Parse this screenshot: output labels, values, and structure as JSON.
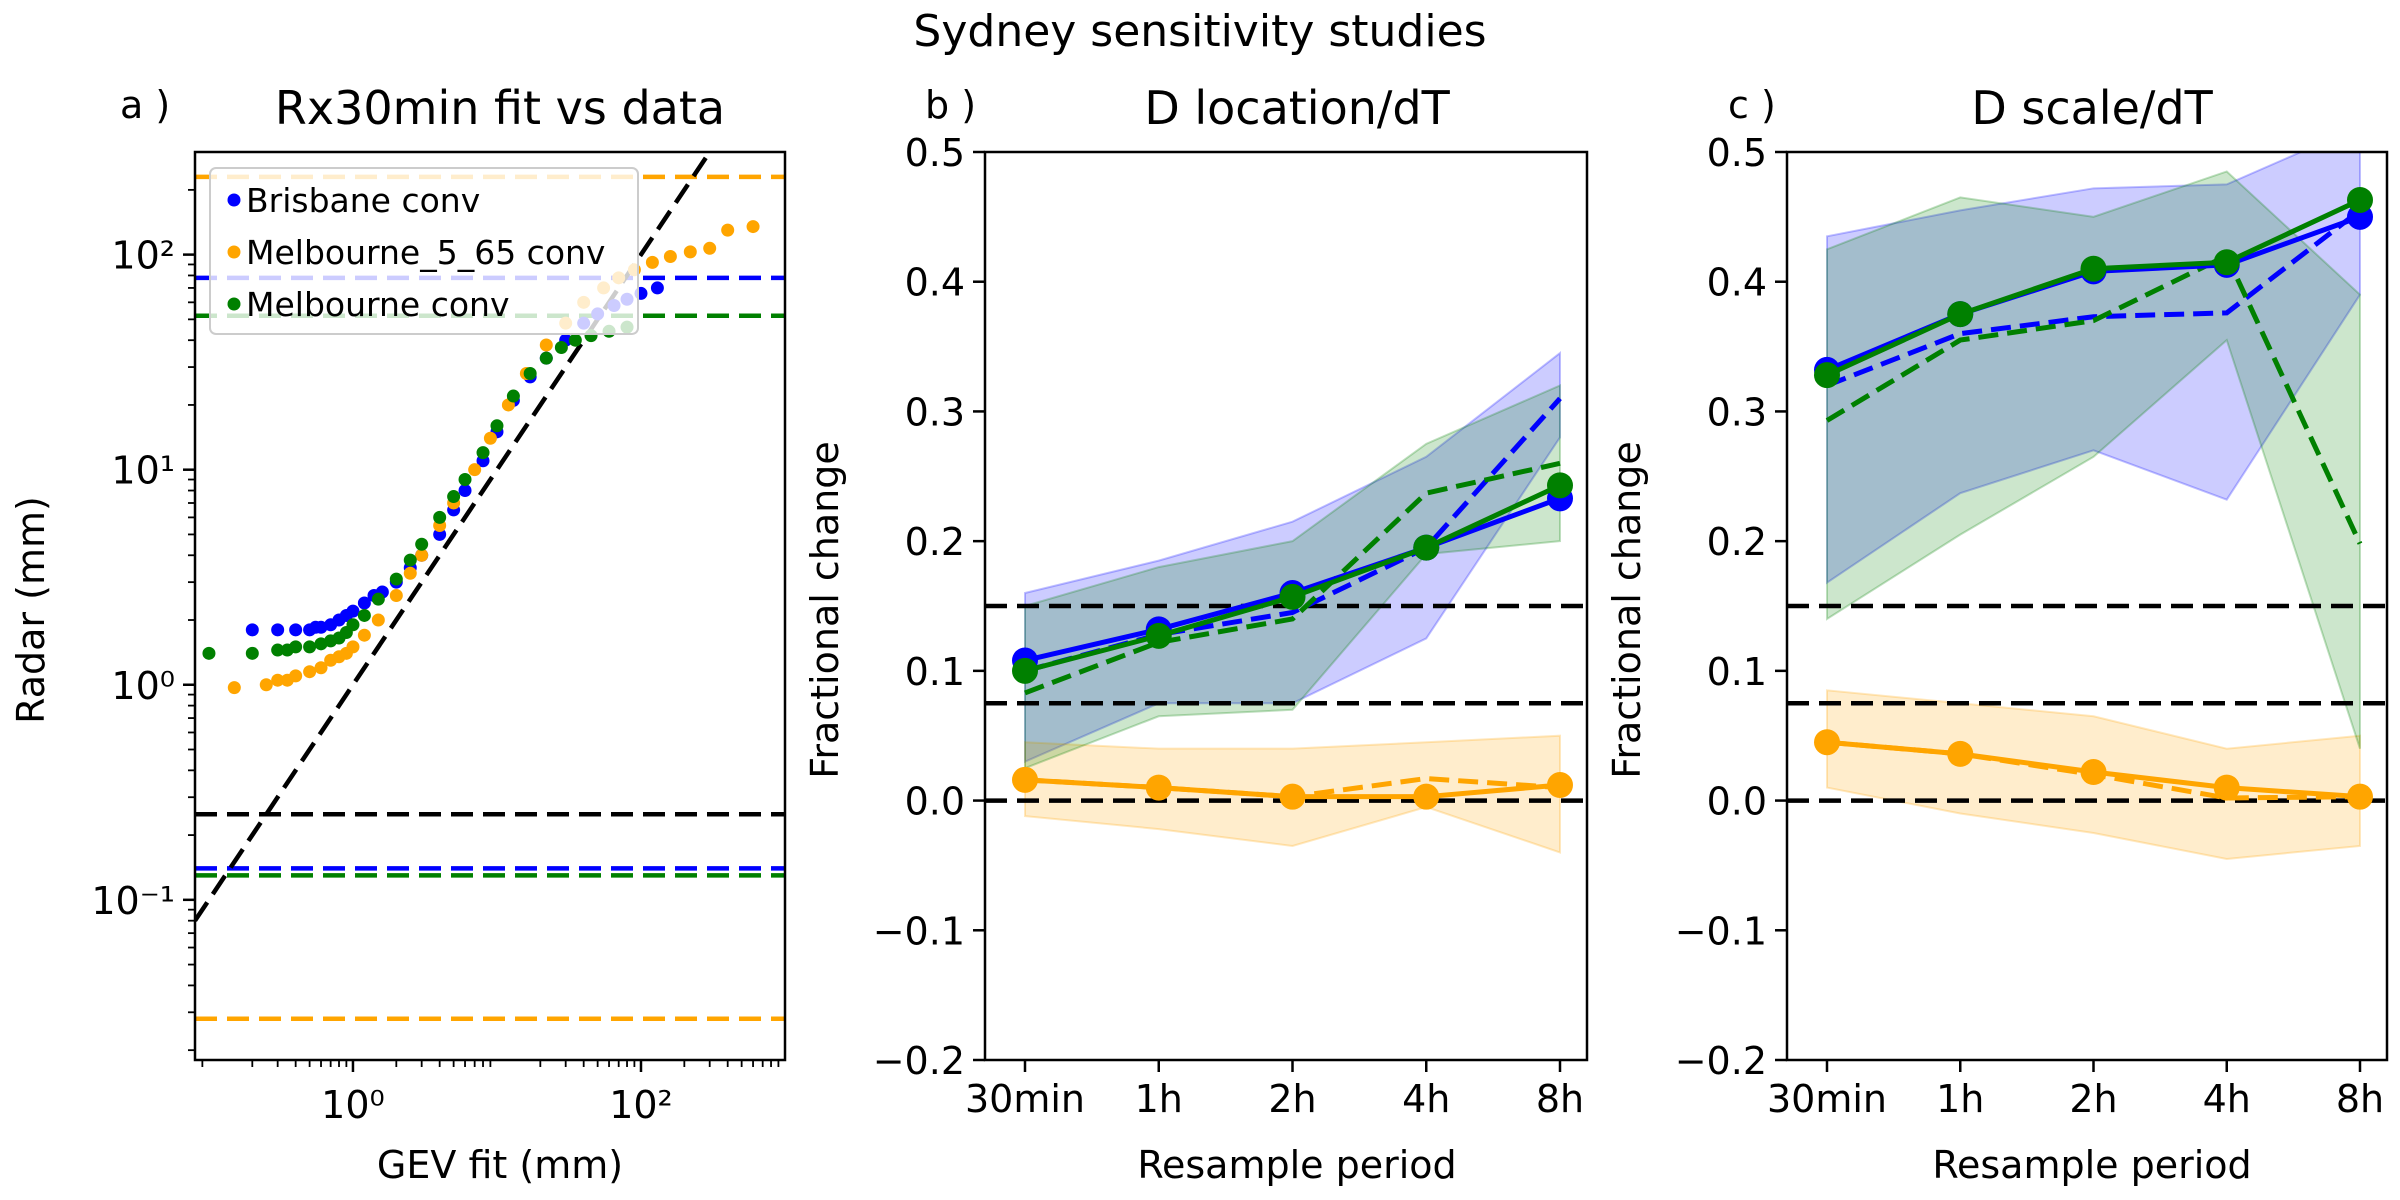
{
  "suptitle": "Sydney sensitivity studies",
  "colors": {
    "blue": "#0000ff",
    "orange": "#ffa500",
    "green": "#008000",
    "black": "#000000"
  },
  "panels": {
    "a": {
      "label": "a )",
      "title": "Rx30min fit vs data",
      "xlabel": "GEV fit (mm)",
      "ylabel": "Radar (mm)"
    },
    "b": {
      "label": "b )",
      "title": "D location/dT",
      "xlabel": "Resample period",
      "ylabel": "Fractional change"
    },
    "c": {
      "label": "c )",
      "title": "D scale/dT",
      "xlabel": "Resample period",
      "ylabel": "Fractional change"
    }
  },
  "chart_data": [
    {
      "type": "scatter",
      "panel": "a",
      "title": "Rx30min fit vs data",
      "xlabel": "GEV fit (mm)",
      "ylabel": "Radar (mm)",
      "xscale": "log",
      "yscale": "log",
      "xlim": [
        0.08,
        1000
      ],
      "ylim": [
        0.018,
        300
      ],
      "x_ticks": [
        {
          "value": 1,
          "label": "10⁰"
        },
        {
          "value": 100,
          "label": "10²"
        }
      ],
      "y_ticks": [
        {
          "value": 0.1,
          "label": "10⁻¹"
        },
        {
          "value": 1,
          "label": "10⁰"
        },
        {
          "value": 10,
          "label": "10¹"
        },
        {
          "value": 100,
          "label": "10²"
        }
      ],
      "legend": {
        "placement": "upper-left",
        "entries": [
          "Brisbane conv",
          "Melbourne_5_65 conv",
          "Melbourne conv"
        ]
      },
      "series": [
        {
          "name": "Brisbane conv",
          "color": "#0000ff",
          "points": [
            [
              0.2,
              1.8
            ],
            [
              0.3,
              1.8
            ],
            [
              0.4,
              1.8
            ],
            [
              0.5,
              1.8
            ],
            [
              0.55,
              1.85
            ],
            [
              0.6,
              1.85
            ],
            [
              0.7,
              1.9
            ],
            [
              0.8,
              2.0
            ],
            [
              0.9,
              2.1
            ],
            [
              1.0,
              2.2
            ],
            [
              1.2,
              2.4
            ],
            [
              1.4,
              2.6
            ],
            [
              1.6,
              2.7
            ],
            [
              2,
              3
            ],
            [
              2.5,
              3.5
            ],
            [
              3,
              4
            ],
            [
              4,
              5
            ],
            [
              5,
              6.5
            ],
            [
              6,
              8
            ],
            [
              8,
              11
            ],
            [
              10,
              15
            ],
            [
              13,
              21
            ],
            [
              17,
              27
            ],
            [
              22,
              33
            ],
            [
              30,
              40
            ],
            [
              40,
              48
            ],
            [
              50,
              53
            ],
            [
              65,
              58
            ],
            [
              80,
              62
            ],
            [
              100,
              66
            ],
            [
              130,
              70
            ]
          ],
          "upper_line": 78,
          "lower_line": 0.14
        },
        {
          "name": "Melbourne_5_65 conv",
          "color": "#ffa500",
          "points": [
            [
              0.15,
              0.97
            ],
            [
              0.25,
              1.0
            ],
            [
              0.3,
              1.05
            ],
            [
              0.35,
              1.05
            ],
            [
              0.4,
              1.1
            ],
            [
              0.5,
              1.15
            ],
            [
              0.6,
              1.2
            ],
            [
              0.7,
              1.3
            ],
            [
              0.8,
              1.35
            ],
            [
              0.9,
              1.4
            ],
            [
              1.0,
              1.5
            ],
            [
              1.2,
              1.7
            ],
            [
              1.5,
              2.0
            ],
            [
              2,
              2.6
            ],
            [
              2.5,
              3.3
            ],
            [
              3,
              4
            ],
            [
              4,
              5.5
            ],
            [
              5,
              7
            ],
            [
              7,
              10
            ],
            [
              9,
              14
            ],
            [
              12,
              20
            ],
            [
              16,
              28
            ],
            [
              22,
              38
            ],
            [
              30,
              48
            ],
            [
              40,
              60
            ],
            [
              55,
              70
            ],
            [
              70,
              78
            ],
            [
              90,
              85
            ],
            [
              120,
              92
            ],
            [
              160,
              98
            ],
            [
              220,
              103
            ],
            [
              300,
              107
            ],
            [
              400,
              130
            ],
            [
              600,
              135
            ]
          ],
          "upper_line": 230,
          "lower_line": 0.028
        },
        {
          "name": "Melbourne conv",
          "color": "#008000",
          "points": [
            [
              0.1,
              1.4
            ],
            [
              0.2,
              1.4
            ],
            [
              0.3,
              1.45
            ],
            [
              0.35,
              1.45
            ],
            [
              0.4,
              1.5
            ],
            [
              0.5,
              1.5
            ],
            [
              0.6,
              1.55
            ],
            [
              0.7,
              1.6
            ],
            [
              0.8,
              1.65
            ],
            [
              0.9,
              1.75
            ],
            [
              1.0,
              1.9
            ],
            [
              1.2,
              2.1
            ],
            [
              1.5,
              2.5
            ],
            [
              2,
              3.1
            ],
            [
              2.5,
              3.8
            ],
            [
              3,
              4.5
            ],
            [
              4,
              6
            ],
            [
              5,
              7.5
            ],
            [
              6,
              9
            ],
            [
              8,
              12
            ],
            [
              10,
              16
            ],
            [
              13,
              22
            ],
            [
              17,
              28
            ],
            [
              22,
              33
            ],
            [
              28,
              37
            ],
            [
              35,
              40
            ],
            [
              45,
              42
            ],
            [
              60,
              44
            ],
            [
              80,
              46
            ]
          ],
          "upper_line": 52,
          "lower_line": 0.13
        }
      ],
      "reference_lines": {
        "black_dashed_h": 0.25,
        "diagonal": "1:1"
      }
    },
    {
      "type": "line",
      "panel": "b",
      "title": "D location/dT",
      "xlabel": "Resample period",
      "ylabel": "Fractional change",
      "categories": [
        "30min",
        "1h",
        "2h",
        "4h",
        "8h"
      ],
      "ylim": [
        -0.2,
        0.5
      ],
      "y_ticks": [
        -0.2,
        -0.1,
        0.0,
        0.1,
        0.2,
        0.3,
        0.4,
        0.5
      ],
      "h_lines": [
        0.15,
        0.075,
        0.0
      ],
      "series": [
        {
          "name": "Brisbane conv",
          "color": "#0000ff",
          "values": [
            0.108,
            0.132,
            0.16,
            0.195,
            0.233
          ],
          "dashed": [
            0.1,
            0.128,
            0.145,
            0.195,
            0.31
          ],
          "band_low": [
            0.03,
            0.075,
            0.075,
            0.125,
            0.28
          ],
          "band_high": [
            0.16,
            0.185,
            0.215,
            0.265,
            0.345
          ]
        },
        {
          "name": "Melbourne_5_65 conv",
          "color": "#ffa500",
          "values": [
            0.016,
            0.01,
            0.003,
            0.003,
            0.012
          ],
          "dashed": [
            0.016,
            0.01,
            0.003,
            0.017,
            0.01
          ],
          "band_low": [
            -0.012,
            -0.022,
            -0.035,
            -0.005,
            -0.04
          ],
          "band_high": [
            0.045,
            0.04,
            0.04,
            0.045,
            0.05
          ]
        },
        {
          "name": "Melbourne conv",
          "color": "#008000",
          "values": [
            0.1,
            0.127,
            0.157,
            0.195,
            0.243
          ],
          "dashed": [
            0.083,
            0.122,
            0.14,
            0.237,
            0.26
          ],
          "band_low": [
            0.025,
            0.065,
            0.07,
            0.19,
            0.2
          ],
          "band_high": [
            0.15,
            0.18,
            0.2,
            0.275,
            0.32
          ]
        }
      ]
    },
    {
      "type": "line",
      "panel": "c",
      "title": "D scale/dT",
      "xlabel": "Resample period",
      "ylabel": "Fractional change",
      "categories": [
        "30min",
        "1h",
        "2h",
        "4h",
        "8h"
      ],
      "ylim": [
        -0.2,
        0.5
      ],
      "y_ticks": [
        -0.2,
        -0.1,
        0.0,
        0.1,
        0.2,
        0.3,
        0.4,
        0.5
      ],
      "h_lines": [
        0.15,
        0.075,
        0.0
      ],
      "series": [
        {
          "name": "Brisbane conv",
          "color": "#0000ff",
          "values": [
            0.332,
            0.375,
            0.408,
            0.413,
            0.45
          ],
          "dashed": [
            0.32,
            0.36,
            0.373,
            0.376,
            0.455
          ],
          "band_low": [
            0.168,
            0.237,
            0.27,
            0.232,
            0.39
          ],
          "band_high": [
            0.435,
            0.455,
            0.472,
            0.475,
            0.52
          ]
        },
        {
          "name": "Melbourne_5_65 conv",
          "color": "#ffa500",
          "values": [
            0.045,
            0.036,
            0.022,
            0.01,
            0.003
          ],
          "dashed": [
            0.045,
            0.036,
            0.02,
            0.002,
            0.003
          ],
          "band_low": [
            0.01,
            -0.01,
            -0.025,
            -0.045,
            -0.035
          ],
          "band_high": [
            0.085,
            0.075,
            0.065,
            0.04,
            0.05
          ]
        },
        {
          "name": "Melbourne conv",
          "color": "#008000",
          "values": [
            0.328,
            0.375,
            0.41,
            0.415,
            0.463
          ],
          "dashed": [
            0.293,
            0.355,
            0.37,
            0.42,
            0.198
          ],
          "band_low": [
            0.14,
            0.205,
            0.265,
            0.355,
            0.04
          ],
          "band_high": [
            0.425,
            0.465,
            0.45,
            0.485,
            0.39
          ]
        }
      ]
    }
  ]
}
